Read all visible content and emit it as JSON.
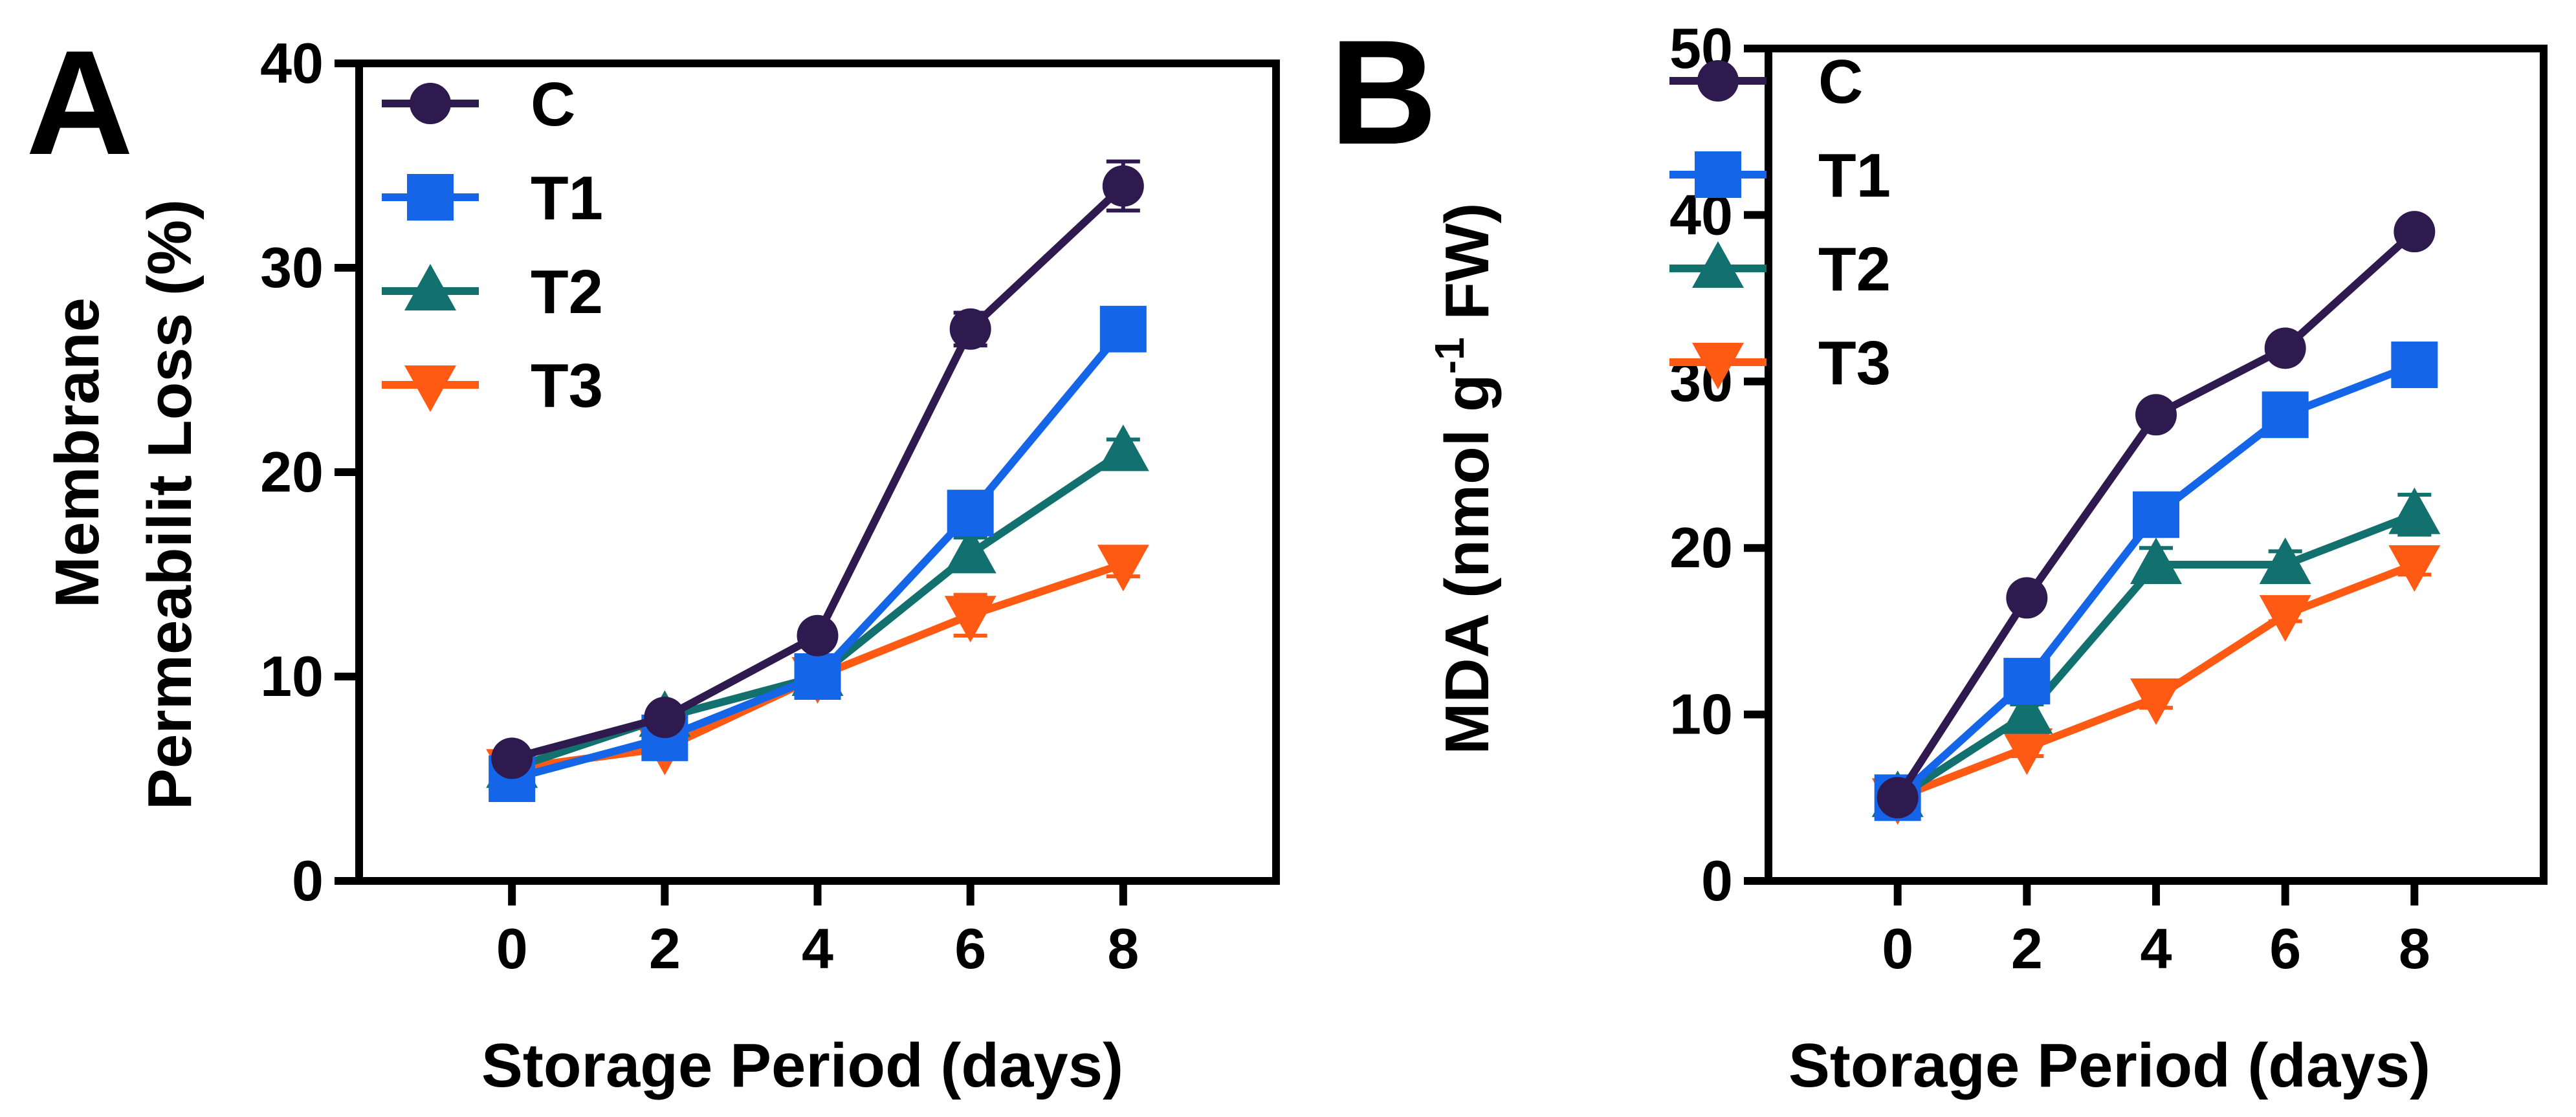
{
  "chart_data": [
    {
      "panel": "A",
      "type": "line",
      "title": "",
      "xlabel": "Storage Period (days)",
      "ylabel_lines": [
        "Membrane",
        "Permeabilit Loss (%)"
      ],
      "x": [
        0,
        2,
        4,
        6,
        8
      ],
      "xlim": [
        -2,
        10
      ],
      "ylim": [
        0,
        40
      ],
      "yticks": [
        0,
        10,
        20,
        30,
        40
      ],
      "legend_position": "top-left",
      "series": [
        {
          "name": "C",
          "marker": "circle",
          "color": "#2e1a4f",
          "values": [
            6,
            8,
            12,
            27,
            34
          ],
          "errors": [
            0.4,
            0.3,
            0.5,
            0.8,
            1.2
          ]
        },
        {
          "name": "T1",
          "marker": "square",
          "color": "#1565e8",
          "values": [
            5,
            7,
            10,
            18,
            27
          ],
          "errors": [
            0.3,
            0.3,
            0.4,
            1.0,
            0.6
          ]
        },
        {
          "name": "T2",
          "marker": "triangle-up",
          "color": "#12706f",
          "values": [
            5.5,
            8,
            10,
            16,
            21
          ],
          "errors": [
            0.3,
            0.3,
            0.4,
            0.8,
            0.6
          ]
        },
        {
          "name": "T3",
          "marker": "triangle-down",
          "color": "#ff5a14",
          "values": [
            5.5,
            6.5,
            10,
            13,
            15.5
          ],
          "errors": [
            0.3,
            0.3,
            0.4,
            1.0,
            0.6
          ]
        }
      ]
    },
    {
      "panel": "B",
      "type": "line",
      "title": "",
      "xlabel": "Storage Period (days)",
      "ylabel_parts": {
        "before": "MDA (nmol g",
        "superscript": "-1",
        "after": " FW)"
      },
      "x": [
        0,
        2,
        4,
        6,
        8
      ],
      "xlim": [
        -2,
        10
      ],
      "ylim": [
        0,
        50
      ],
      "yticks": [
        0,
        10,
        20,
        30,
        40,
        50
      ],
      "legend_position": "top-left",
      "series": [
        {
          "name": "C",
          "marker": "circle",
          "color": "#2e1a4f",
          "values": [
            5,
            17,
            28,
            32,
            39
          ],
          "errors": [
            0.3,
            0.4,
            0.5,
            0.5,
            0.6
          ]
        },
        {
          "name": "T1",
          "marker": "square",
          "color": "#1565e8",
          "values": [
            5,
            12,
            22,
            28,
            31
          ],
          "errors": [
            0.3,
            0.6,
            0.6,
            0.6,
            1.0
          ]
        },
        {
          "name": "T2",
          "marker": "triangle-up",
          "color": "#12706f",
          "values": [
            5,
            10,
            19,
            19,
            22
          ],
          "errors": [
            0.3,
            0.6,
            1.0,
            0.8,
            1.2
          ]
        },
        {
          "name": "T3",
          "marker": "triangle-down",
          "color": "#ff5a14",
          "values": [
            5,
            8,
            11,
            16,
            19
          ],
          "errors": [
            0.3,
            0.5,
            0.6,
            0.4,
            0.6
          ]
        }
      ]
    }
  ]
}
